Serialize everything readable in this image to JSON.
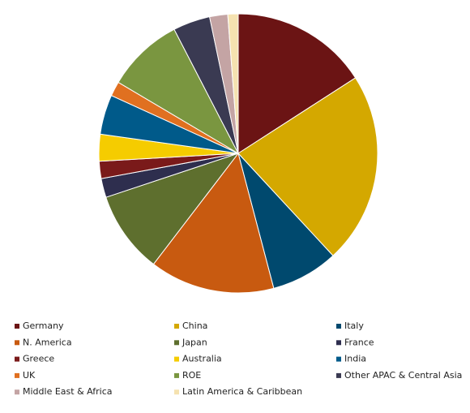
{
  "chart_data": {
    "type": "pie",
    "categories": [
      "Germany",
      "China",
      "Italy",
      "N. America",
      "Japan",
      "France",
      "Greece",
      "Australia",
      "India",
      "UK",
      "ROE",
      "Other APAC & Central Asia",
      "Middle East & Africa",
      "Latin America & Caribbean"
    ],
    "values": [
      15.9,
      22.2,
      7.8,
      14.5,
      9.5,
      2.2,
      2.0,
      3.1,
      4.6,
      1.7,
      8.9,
      4.3,
      2.1,
      1.2
    ],
    "colors": [
      "#6b1414",
      "#d4a800",
      "#00496e",
      "#c85a10",
      "#5e6f2e",
      "#2e2e4e",
      "#7a1a1a",
      "#f5cc00",
      "#005a8a",
      "#e07020",
      "#7a9640",
      "#3a3a52",
      "#c4a4a4",
      "#f5e2b0"
    ],
    "legend": "bottom"
  }
}
